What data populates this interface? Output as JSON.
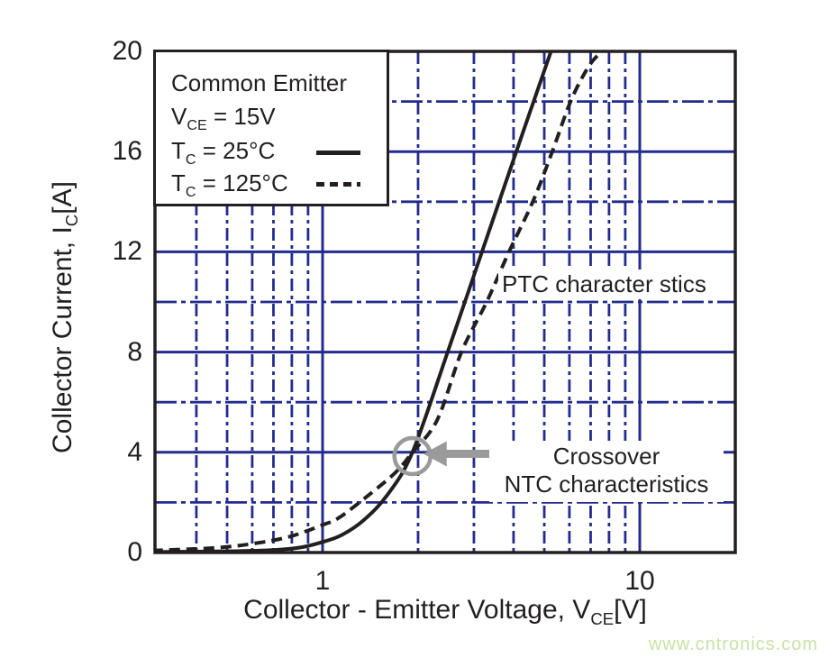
{
  "chart_data": {
    "type": "line",
    "x_scale": "log",
    "xlim": [
      0.29,
      20
    ],
    "ylim": [
      0,
      20
    ],
    "xlabel": {
      "pre": "Collector - Emitter Voltage, V",
      "sub": "CE",
      "post": "[V]"
    },
    "ylabel": {
      "pre": "Collector Current, I",
      "sub": "C",
      "post": "[A]"
    },
    "x_ticks": [
      {
        "value": 1,
        "label": "1"
      },
      {
        "value": 10,
        "label": "10"
      }
    ],
    "y_ticks": [
      {
        "value": 0,
        "label": "0"
      },
      {
        "value": 4,
        "label": "4"
      },
      {
        "value": 8,
        "label": "8"
      },
      {
        "value": 12,
        "label": "12"
      },
      {
        "value": 16,
        "label": "16"
      },
      {
        "value": 20,
        "label": "20"
      }
    ],
    "grid": {
      "on": true,
      "x_major": [
        1,
        10
      ],
      "x_minor": [
        0.4,
        0.5,
        0.6,
        0.7,
        0.8,
        0.9,
        2,
        3,
        4,
        5,
        6,
        7,
        8,
        9
      ],
      "y_major": [
        4,
        8,
        12,
        16
      ],
      "y_minor": [
        2,
        6,
        10,
        14,
        18
      ]
    },
    "series": [
      {
        "name": "Tc = 25°C",
        "style": "solid",
        "points": [
          [
            0.29,
            0.02
          ],
          [
            0.5,
            0.05
          ],
          [
            0.7,
            0.1
          ],
          [
            0.85,
            0.2
          ],
          [
            1.0,
            0.42
          ],
          [
            1.15,
            0.7
          ],
          [
            1.35,
            1.3
          ],
          [
            1.6,
            2.3
          ],
          [
            1.92,
            4.0
          ],
          [
            2.48,
            8.0
          ],
          [
            3.18,
            12.0
          ],
          [
            4.08,
            16.0
          ],
          [
            5.25,
            20.0
          ]
        ]
      },
      {
        "name": "Tc = 125°C",
        "style": "dashed",
        "points": [
          [
            0.29,
            0.08
          ],
          [
            0.45,
            0.18
          ],
          [
            0.6,
            0.35
          ],
          [
            0.78,
            0.62
          ],
          [
            1.0,
            1.1
          ],
          [
            1.13,
            1.4
          ],
          [
            1.4,
            2.3
          ],
          [
            1.7,
            3.2
          ],
          [
            1.92,
            4.0
          ],
          [
            2.3,
            5.3
          ],
          [
            2.74,
            8.0
          ],
          [
            3.29,
            10.0
          ],
          [
            3.87,
            12.0
          ],
          [
            4.6,
            14.0
          ],
          [
            5.3,
            16.0
          ],
          [
            6.05,
            18.0
          ],
          [
            6.9,
            19.4
          ],
          [
            7.6,
            20.0
          ]
        ]
      }
    ],
    "crossover_point": {
      "x": 1.92,
      "y": 3.85
    },
    "colors": {
      "grid": "#232c8e",
      "curve": "#231f20",
      "callout": "#9a9a9a",
      "text": "#231f20"
    },
    "legend_position": "top-left"
  },
  "legend": {
    "title": "Common Emitter",
    "vce": {
      "pre": "V",
      "sub": "CE",
      "post": " = 15V"
    },
    "t25": {
      "pre": "T",
      "sub": "C",
      "post": " = 25°C"
    },
    "t125": {
      "pre": "T",
      "sub": "C",
      "post": " = 125°C"
    }
  },
  "annotations": {
    "ptc": "PTC character stics",
    "crossover_line1": "Crossover",
    "crossover_line2": "NTC characteristics"
  },
  "watermark": {
    "text": "www.cntronics.com",
    "color": "#c8e3a6"
  }
}
